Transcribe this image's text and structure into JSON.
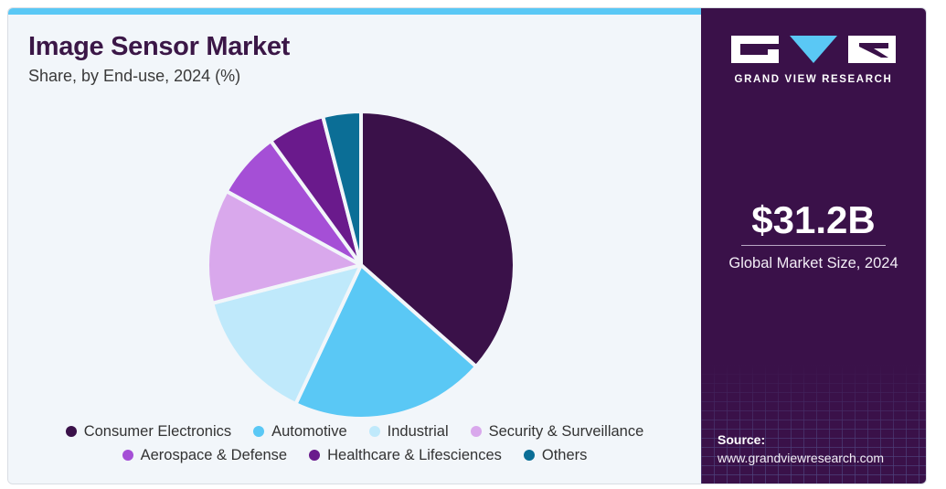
{
  "chart_data": {
    "type": "pie",
    "title": "Image Sensor Market",
    "subtitle": "Share, by End-use, 2024 (%)",
    "categories": [
      "Consumer Electronics",
      "Automotive",
      "Industrial",
      "Security & Surveillance",
      "Aerospace & Defense",
      "Healthcare & Lifesciences",
      "Others"
    ],
    "values": [
      36.5,
      20.5,
      14.0,
      12.0,
      7.0,
      6.0,
      4.0
    ],
    "colors": [
      "#3a1149",
      "#5ac8f5",
      "#bfe9fb",
      "#d9a8ec",
      "#a54fd6",
      "#6a1a8c",
      "#0b6e96"
    ],
    "legend_position": "bottom"
  },
  "brand": {
    "name": "GRAND VIEW RESEARCH"
  },
  "highlight": {
    "value": "$31.2B",
    "caption": "Global Market Size, 2024"
  },
  "source": {
    "label": "Source:",
    "url": "www.grandviewresearch.com"
  }
}
